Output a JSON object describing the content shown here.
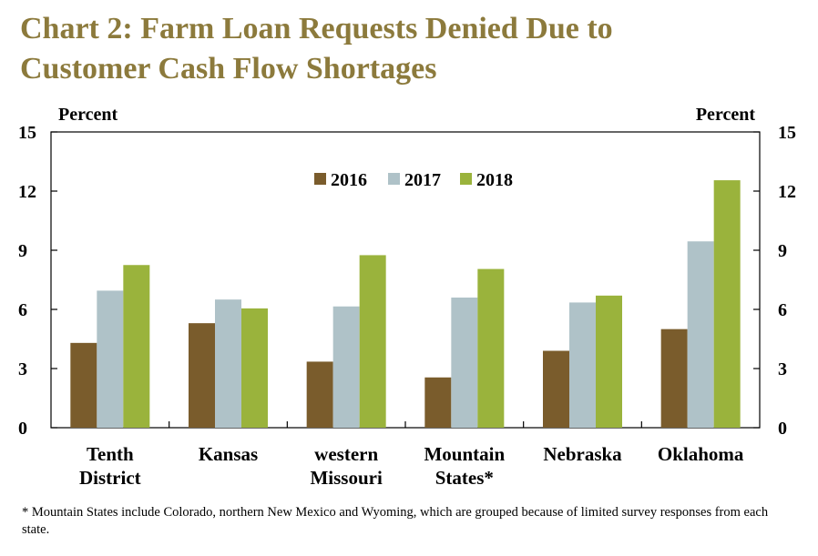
{
  "title_line1": "Chart 2: Farm Loan Requests Denied Due to",
  "title_line2": "Customer Cash Flow Shortages",
  "footnote": "* Mountain States include Colorado, northern New Mexico and Wyoming, which are grouped because of limited survey responses from each state.",
  "colors": {
    "2016": "#7a5c2c",
    "2017": "#afc2c8",
    "2018": "#9ab33c",
    "title": "#8c7a3c"
  },
  "chart_data": {
    "type": "bar",
    "title": "Chart 2: Farm Loan Requests Denied Due to Customer Cash Flow Shortages",
    "ylabel_left": "Percent",
    "ylabel_right": "Percent",
    "ylim": [
      0,
      15
    ],
    "yticks": [
      "0",
      "3",
      "6",
      "9",
      "12",
      "15"
    ],
    "legend_position": "top-center",
    "categories": [
      [
        "Tenth",
        "District"
      ],
      [
        "Kansas"
      ],
      [
        "western",
        "Missouri"
      ],
      [
        "Mountain",
        "States*"
      ],
      [
        "Nebraska"
      ],
      [
        "Oklahoma"
      ]
    ],
    "series": [
      {
        "name": "2016",
        "values": [
          4.3,
          5.3,
          3.35,
          2.55,
          3.9,
          5.0
        ]
      },
      {
        "name": "2017",
        "values": [
          6.95,
          6.5,
          6.15,
          6.6,
          6.35,
          9.45
        ]
      },
      {
        "name": "2018",
        "values": [
          8.25,
          6.05,
          8.75,
          8.05,
          6.7,
          12.55
        ]
      }
    ]
  }
}
